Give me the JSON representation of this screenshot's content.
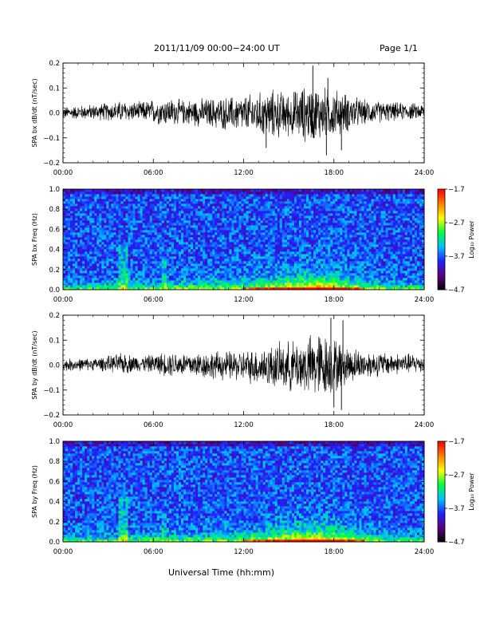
{
  "header": {
    "title": "2011/11/09  00:00−24:00 UT",
    "page": "Page 1/1"
  },
  "xaxis": {
    "label": "Universal Time (hh:mm)",
    "ticks": [
      "00:00",
      "06:00",
      "12:00",
      "18:00",
      "24:00"
    ],
    "range_hours": [
      0,
      24
    ]
  },
  "colors": {
    "trace": "#000000",
    "colormap": [
      "#000000",
      "#5a0080",
      "#2020ff",
      "#00c0ff",
      "#00ff40",
      "#ffff00",
      "#ff8000",
      "#ff0000"
    ]
  },
  "chart_data": [
    {
      "type": "line",
      "id": "bx-wave",
      "ylabel": "SPA bx dB/dt (nT/sec)",
      "ylim": [
        -0.2,
        0.2
      ],
      "yticks": [
        "0.2",
        "0.1",
        "0.0",
        "−0.1",
        "−0.2"
      ],
      "yvals": [
        0.2,
        0.1,
        0.0,
        -0.1,
        -0.2
      ],
      "envelope": {
        "x": [
          0,
          2,
          4,
          5,
          6,
          7,
          8,
          10,
          12,
          13,
          14,
          15,
          16,
          17,
          18,
          19,
          20,
          22,
          24
        ],
        "amplitude": [
          0.02,
          0.025,
          0.035,
          0.03,
          0.04,
          0.045,
          0.04,
          0.05,
          0.06,
          0.07,
          0.08,
          0.07,
          0.09,
          0.09,
          0.08,
          0.06,
          0.04,
          0.03,
          0.025
        ]
      },
      "spikes": [
        {
          "x": 16.6,
          "y": 0.19
        },
        {
          "x": 17.6,
          "y": 0.14
        },
        {
          "x": 17.5,
          "y": -0.17
        },
        {
          "x": 13.5,
          "y": -0.14
        },
        {
          "x": 18.5,
          "y": -0.15
        }
      ]
    },
    {
      "type": "heatmap",
      "id": "bx-spec",
      "ylabel": "SPA bx Freq (Hz)",
      "ylim": [
        0,
        1
      ],
      "yticks": [
        "1.0",
        "0.8",
        "0.6",
        "0.4",
        "0.2",
        "0.0"
      ],
      "yvals": [
        1.0,
        0.8,
        0.6,
        0.4,
        0.2,
        0.0
      ],
      "colorbar": {
        "label": "Log₁₀ Power",
        "range": [
          -4.7,
          -1.7
        ],
        "ticks": [
          "−1.7",
          "−2.7",
          "−3.7",
          "−4.7"
        ],
        "tickvals": [
          -1.7,
          -2.7,
          -3.7,
          -4.7
        ]
      }
    },
    {
      "type": "line",
      "id": "by-wave",
      "ylabel": "SPA by dB/dt (nT/sec)",
      "ylim": [
        -0.2,
        0.2
      ],
      "yticks": [
        "0.2",
        "0.1",
        "0.0",
        "−0.1",
        "−0.2"
      ],
      "yvals": [
        0.2,
        0.1,
        0.0,
        -0.1,
        -0.2
      ],
      "envelope": {
        "x": [
          0,
          2,
          3,
          4,
          5,
          6,
          7,
          8,
          10,
          12,
          13,
          14,
          15,
          16,
          17,
          18,
          19,
          20,
          22,
          24
        ],
        "amplitude": [
          0.02,
          0.02,
          0.025,
          0.035,
          0.025,
          0.03,
          0.04,
          0.04,
          0.045,
          0.05,
          0.06,
          0.07,
          0.08,
          0.09,
          0.11,
          0.09,
          0.06,
          0.045,
          0.035,
          0.03
        ]
      },
      "spikes": [
        {
          "x": 17.8,
          "y": 0.19
        },
        {
          "x": 18.6,
          "y": 0.18
        },
        {
          "x": 17.0,
          "y": 0.11
        },
        {
          "x": 18.5,
          "y": -0.18
        },
        {
          "x": 18.0,
          "y": -0.17
        }
      ]
    },
    {
      "type": "heatmap",
      "id": "by-spec",
      "ylabel": "SPA by Freq (Hz)",
      "ylim": [
        0,
        1
      ],
      "yticks": [
        "1.0",
        "0.8",
        "0.6",
        "0.4",
        "0.2",
        "0.0"
      ],
      "yvals": [
        1.0,
        0.8,
        0.6,
        0.4,
        0.2,
        0.0
      ],
      "colorbar": {
        "label": "Log₁₀ Power",
        "range": [
          -4.7,
          -1.7
        ],
        "ticks": [
          "−1.7",
          "−2.7",
          "−3.7",
          "−4.7"
        ],
        "tickvals": [
          -1.7,
          -2.7,
          -3.7,
          -4.7
        ]
      }
    }
  ]
}
